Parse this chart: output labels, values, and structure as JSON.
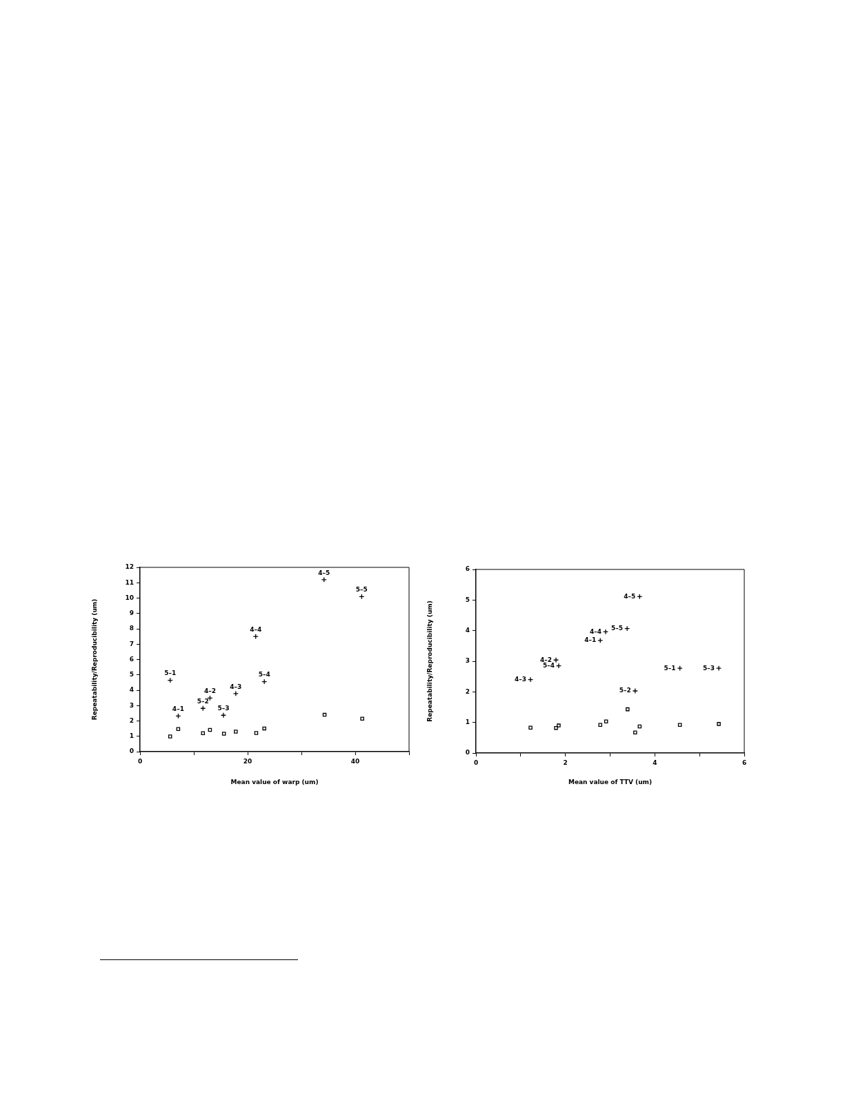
{
  "chart_data": [
    {
      "type": "scatter",
      "xlabel": "Mean value of warp (um)",
      "ylabel": "Repeatability/Reproducibility (um)",
      "xlim": [
        0,
        50
      ],
      "ylim": [
        0,
        12
      ],
      "xticks": [
        0,
        {
          "value": 10,
          "label": null
        },
        20,
        {
          "value": 30,
          "label": null
        },
        40,
        {
          "value": 50,
          "label": null
        }
      ],
      "yticks": [
        0,
        1,
        2,
        3,
        4,
        5,
        6,
        7,
        8,
        9,
        10,
        11,
        12
      ],
      "series": [
        {
          "color": "#000000",
          "marker": "cross",
          "x": [
            5.6,
            7.1,
            11.7,
            13.0,
            15.5,
            17.8,
            21.5,
            23.1,
            34.2,
            41.2
          ],
          "values": [
            4.65,
            2.32,
            2.82,
            3.49,
            2.37,
            3.78,
            7.5,
            4.56,
            11.2,
            10.1
          ]
        },
        {
          "color": "#000000",
          "marker": "square",
          "x": [
            5.6,
            7.1,
            11.7,
            13.0,
            15.6,
            17.8,
            21.6,
            23.1,
            34.3,
            41.3
          ],
          "values": [
            0.99,
            1.47,
            1.2,
            1.42,
            1.17,
            1.3,
            1.21,
            1.51,
            2.4,
            2.15
          ]
        }
      ],
      "annotations": [
        {
          "text": "5–1",
          "x": 5.6,
          "y": 4.65
        },
        {
          "text": "4–1",
          "x": 7.1,
          "y": 2.32
        },
        {
          "text": "5–2",
          "x": 11.7,
          "y": 2.82
        },
        {
          "text": "4–2",
          "x": 13.0,
          "y": 3.49
        },
        {
          "text": "5–3",
          "x": 15.5,
          "y": 2.37
        },
        {
          "text": "4–3",
          "x": 17.8,
          "y": 3.78
        },
        {
          "text": "4–4",
          "x": 21.5,
          "y": 7.5
        },
        {
          "text": "5–4",
          "x": 23.1,
          "y": 4.56
        },
        {
          "text": "4–5",
          "x": 34.2,
          "y": 11.2
        },
        {
          "text": "5–5",
          "x": 41.2,
          "y": 10.1
        }
      ]
    },
    {
      "type": "scatter",
      "xlabel": "Mean value of TTV (um)",
      "ylabel": "Repeatability/Reproducibility (um)",
      "xlim": [
        0,
        6
      ],
      "ylim": [
        0,
        6
      ],
      "xticks": [
        0,
        {
          "value": 1,
          "label": null
        },
        2,
        {
          "value": 3,
          "label": null
        },
        4,
        {
          "value": 5,
          "label": null
        },
        6
      ],
      "yticks": [
        0,
        1,
        2,
        3,
        4,
        5,
        6
      ],
      "series": [
        {
          "color": "#000000",
          "marker": "cross",
          "x": [
            1.22,
            1.79,
            1.85,
            2.78,
            2.9,
            3.38,
            3.66,
            3.56,
            4.56,
            5.43
          ],
          "values": [
            2.4,
            3.04,
            2.85,
            3.68,
            3.96,
            4.07,
            5.11,
            2.03,
            2.77,
            2.77
          ]
        },
        {
          "color": "#000000",
          "marker": "square",
          "x": [
            1.22,
            1.79,
            1.85,
            2.78,
            2.91,
            3.39,
            3.56,
            3.66,
            4.56,
            5.43
          ],
          "values": [
            0.83,
            0.82,
            0.9,
            0.92,
            1.03,
            1.43,
            0.67,
            0.87,
            0.92,
            0.95
          ]
        }
      ],
      "annotations": [
        {
          "text": "4–3",
          "x": 1.22,
          "y": 2.4
        },
        {
          "text": "4–2",
          "x": 1.79,
          "y": 3.04
        },
        {
          "text": "5–4",
          "x": 1.85,
          "y": 2.85
        },
        {
          "text": "4–1",
          "x": 2.78,
          "y": 3.68
        },
        {
          "text": "4–4",
          "x": 2.9,
          "y": 3.96
        },
        {
          "text": "5–5",
          "x": 3.38,
          "y": 4.07
        },
        {
          "text": "4–5",
          "x": 3.66,
          "y": 5.11
        },
        {
          "text": "5–2",
          "x": 3.56,
          "y": 2.03
        },
        {
          "text": "5–1",
          "x": 4.56,
          "y": 2.77
        },
        {
          "text": "5–3",
          "x": 5.43,
          "y": 2.77
        }
      ]
    }
  ]
}
